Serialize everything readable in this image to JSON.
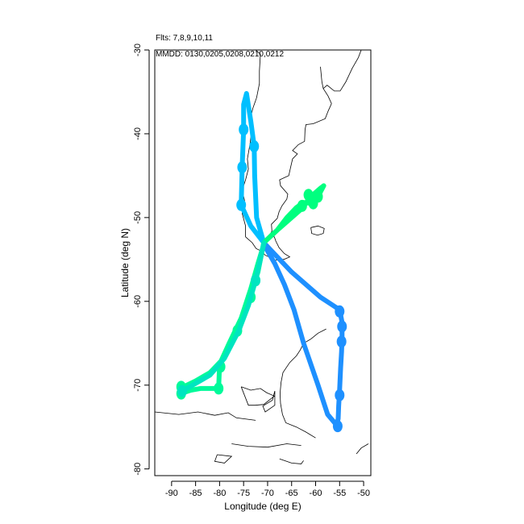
{
  "header": {
    "flights_label": "Flts: 7,8,9,10,11",
    "dates_label": "MMDD: 0130,0205,0208,0210,0212"
  },
  "chart_data": {
    "type": "map-trajectory",
    "xlabel": "Longitude (deg E)",
    "ylabel": "Latitude (deg N)",
    "xlim": [
      -93.5,
      -48.5
    ],
    "ylim": [
      -80.8,
      -30
    ],
    "xticks": [
      -90,
      -85,
      -80,
      -75,
      -70,
      -65,
      -60,
      -55,
      -50
    ],
    "yticks": [
      -80,
      -70,
      -60,
      -50,
      -40,
      -30
    ],
    "grid": false,
    "colors": {
      "coast": "#000000",
      "flight_7": "#1e90ff",
      "flight_8": "#00bfff",
      "flight_9": "#00ff7f",
      "flight_10": "#00fa9a",
      "flight_11": "#00e5c0"
    },
    "series": [
      {
        "flight": "7",
        "date": "0130",
        "color": "#1e90ff",
        "points": [
          [
            -70.8,
            -53.0
          ],
          [
            -65,
            -56.5
          ],
          [
            -59,
            -59.5
          ],
          [
            -55,
            -61
          ],
          [
            -54.5,
            -62.5
          ],
          [
            -54.5,
            -64.5
          ],
          [
            -54.6,
            -66
          ],
          [
            -54.8,
            -68
          ],
          [
            -55.0,
            -70.5
          ],
          [
            -55.2,
            -72.5
          ],
          [
            -55.3,
            -74.0
          ],
          [
            -55.6,
            -74.8
          ],
          [
            -57.5,
            -73.5
          ],
          [
            -59.5,
            -70
          ],
          [
            -62.5,
            -65
          ],
          [
            -64.5,
            -61
          ],
          [
            -66.5,
            -58
          ],
          [
            -68.5,
            -55.5
          ],
          [
            -70.8,
            -53.2
          ]
        ],
        "markers": [
          [
            -55,
            -61.2
          ],
          [
            -54.5,
            -63
          ],
          [
            -54.6,
            -64.8
          ],
          [
            -55,
            -71.2
          ],
          [
            -55.4,
            -74.9
          ]
        ]
      },
      {
        "flight": "8",
        "date": "0205",
        "color": "#00bfff",
        "points": [
          [
            -70.8,
            -53.0
          ],
          [
            -72.3,
            -50
          ],
          [
            -72.7,
            -45
          ],
          [
            -72.8,
            -41.5
          ],
          [
            -73.5,
            -38.5
          ],
          [
            -74.4,
            -35.2
          ],
          [
            -75.0,
            -36.5
          ],
          [
            -75.0,
            -39.5
          ],
          [
            -75.3,
            -44
          ],
          [
            -75.5,
            -48.5
          ],
          [
            -73.5,
            -51
          ],
          [
            -70.8,
            -53.0
          ]
        ],
        "markers": [
          [
            -72.8,
            -41.5
          ],
          [
            -75.0,
            -39.5
          ],
          [
            -75.3,
            -44
          ],
          [
            -75.5,
            -48.5
          ]
        ]
      },
      {
        "flight": "9",
        "date": "0208",
        "color": "#00ff7f",
        "points": [
          [
            -70.8,
            -53.0
          ],
          [
            -69,
            -52
          ],
          [
            -66,
            -50.5
          ],
          [
            -63,
            -49
          ],
          [
            -61,
            -47.5
          ],
          [
            -59,
            -46.5
          ],
          [
            -58.3,
            -46.2
          ],
          [
            -59.5,
            -47.5
          ],
          [
            -61,
            -48.3
          ],
          [
            -62.5,
            -48.2
          ],
          [
            -64,
            -48.8
          ],
          [
            -66,
            -50
          ],
          [
            -68,
            -51.5
          ],
          [
            -70.8,
            -53.0
          ]
        ],
        "markers": [
          [
            -59.5,
            -47.5
          ],
          [
            -61.5,
            -47.3
          ],
          [
            -62.8,
            -48.6
          ],
          [
            -60.5,
            -48.3
          ]
        ]
      },
      {
        "flight": "10",
        "date": "0210",
        "color": "#00fa9a",
        "points": [
          [
            -70.8,
            -53.0
          ],
          [
            -72,
            -56.5
          ],
          [
            -74,
            -60
          ],
          [
            -76,
            -63.5
          ],
          [
            -79.5,
            -67
          ],
          [
            -82,
            -68.5
          ],
          [
            -85,
            -69.5
          ],
          [
            -87.5,
            -70.2
          ],
          [
            -88,
            -71
          ],
          [
            -86,
            -70.6
          ],
          [
            -84,
            -70.4
          ],
          [
            -80.2,
            -70.4
          ],
          [
            -80,
            -67.5
          ],
          [
            -78,
            -65
          ],
          [
            -75.5,
            -62
          ],
          [
            -73.5,
            -58.5
          ],
          [
            -72,
            -55.5
          ],
          [
            -70.8,
            -53.2
          ]
        ],
        "markers": [
          [
            -88,
            -70.2
          ],
          [
            -88,
            -71
          ],
          [
            -80.2,
            -70.4
          ],
          [
            -79.8,
            -67.8
          ],
          [
            -76.3,
            -63.5
          ],
          [
            -73.5,
            -59.5
          ]
        ]
      },
      {
        "flight": "11",
        "date": "0212",
        "color": "#00e5c0",
        "points": [
          [
            -70.8,
            -53.0
          ],
          [
            -71.5,
            -55
          ],
          [
            -72.5,
            -57.5
          ],
          [
            -74,
            -60.5
          ],
          [
            -76,
            -63.5
          ],
          [
            -79,
            -66.8
          ],
          [
            -82,
            -68.8
          ],
          [
            -85,
            -69.8
          ],
          [
            -87.8,
            -70.7
          ]
        ],
        "markers": [
          [
            -72.5,
            -57.5
          ],
          [
            -87.8,
            -70.7
          ]
        ]
      }
    ],
    "coastlines": [
      [
        [
          -72.5,
          -30
        ],
        [
          -71.5,
          -30.5
        ],
        [
          -71.7,
          -32.5
        ],
        [
          -71.7,
          -34
        ],
        [
          -72.3,
          -35.7
        ],
        [
          -73.1,
          -37
        ],
        [
          -73.5,
          -38
        ],
        [
          -73.3,
          -39.5
        ],
        [
          -73.6,
          -41
        ],
        [
          -73.9,
          -42
        ],
        [
          -74.2,
          -43
        ],
        [
          -74.0,
          -44.2
        ],
        [
          -74.6,
          -45.5
        ],
        [
          -75.3,
          -46.7
        ],
        [
          -74.8,
          -48
        ],
        [
          -75.3,
          -49.5
        ],
        [
          -74.6,
          -51
        ],
        [
          -74.6,
          -52.3
        ],
        [
          -73.2,
          -53
        ],
        [
          -72.4,
          -53.7
        ],
        [
          -71.3,
          -54.0
        ],
        [
          -70.5,
          -54.5
        ],
        [
          -69.3,
          -54.8
        ],
        [
          -68.5,
          -55.1
        ],
        [
          -67.3,
          -55.0
        ],
        [
          -66.6,
          -55.0
        ],
        [
          -65.4,
          -54.7
        ],
        [
          -66.5,
          -54.3
        ],
        [
          -67.6,
          -53.6
        ],
        [
          -68.3,
          -52.8
        ],
        [
          -68.6,
          -52.3
        ],
        [
          -69.6,
          -52.2
        ],
        [
          -69.1,
          -51.6
        ],
        [
          -69.2,
          -50.8
        ],
        [
          -68.0,
          -50.1
        ],
        [
          -67.6,
          -49.3
        ],
        [
          -67.0,
          -48.6
        ],
        [
          -66.0,
          -47.8
        ],
        [
          -65.8,
          -47.2
        ],
        [
          -67.3,
          -46.2
        ],
        [
          -67.5,
          -45.5
        ],
        [
          -65.6,
          -45.0
        ],
        [
          -65.2,
          -44.0
        ],
        [
          -64.8,
          -43.0
        ],
        [
          -63.8,
          -42.4
        ],
        [
          -64.8,
          -42.0
        ],
        [
          -63.6,
          -41.3
        ],
        [
          -62.3,
          -40.9
        ],
        [
          -62.2,
          -39.5
        ],
        [
          -62.0,
          -38.9
        ],
        [
          -60.5,
          -38.8
        ],
        [
          -58.0,
          -38.2
        ],
        [
          -57.4,
          -37.3
        ],
        [
          -56.7,
          -36.4
        ],
        [
          -57.4,
          -35.5
        ],
        [
          -58.4,
          -34.6
        ],
        [
          -57.6,
          -34.2
        ],
        [
          -56.1,
          -34.9
        ],
        [
          -54.9,
          -34.9
        ],
        [
          -53.7,
          -33.8
        ],
        [
          -52.4,
          -32.2
        ],
        [
          -51.1,
          -30.9
        ],
        [
          -50.5,
          -30
        ]
      ],
      [
        [
          -61.0,
          -51.2
        ],
        [
          -59.5,
          -51.0
        ],
        [
          -58.2,
          -51.3
        ],
        [
          -58.4,
          -51.9
        ],
        [
          -59.6,
          -52.1
        ],
        [
          -60.8,
          -51.9
        ],
        [
          -61.0,
          -51.2
        ]
      ],
      [
        [
          -57.8,
          -63.3
        ],
        [
          -59.5,
          -63.8
        ],
        [
          -61.0,
          -64.5
        ],
        [
          -62.5,
          -65.0
        ],
        [
          -63.2,
          -65.8
        ],
        [
          -64.0,
          -66.5
        ],
        [
          -65.4,
          -67.3
        ],
        [
          -66.8,
          -68.5
        ],
        [
          -67.2,
          -69.7
        ],
        [
          -67.4,
          -71.0
        ],
        [
          -67.3,
          -72.2
        ],
        [
          -66.9,
          -73.5
        ],
        [
          -66.2,
          -74.5
        ],
        [
          -64.0,
          -75.0
        ],
        [
          -62.0,
          -75.6
        ],
        [
          -60.0,
          -76.3
        ]
      ],
      [
        [
          -75.5,
          -70.2
        ],
        [
          -73.5,
          -70.6
        ],
        [
          -71.5,
          -70.4
        ],
        [
          -70.2,
          -70.9
        ],
        [
          -68.6,
          -71.3
        ],
        [
          -70.8,
          -72.3
        ],
        [
          -72.6,
          -72.4
        ],
        [
          -74.0,
          -72.4
        ],
        [
          -75.5,
          -70.2
        ]
      ],
      [
        [
          -68.5,
          -70.7
        ],
        [
          -69.0,
          -71.8
        ],
        [
          -71.0,
          -72.5
        ],
        [
          -70.5,
          -73.2
        ],
        [
          -68.5,
          -72.4
        ],
        [
          -68.5,
          -70.7
        ]
      ],
      [
        [
          -93.5,
          -73.2
        ],
        [
          -88.5,
          -73.5
        ],
        [
          -84.5,
          -73.2
        ],
        [
          -81.0,
          -73.6
        ],
        [
          -78.2,
          -73.3
        ],
        [
          -76.5,
          -73.9
        ],
        [
          -72.5,
          -74.2
        ]
      ],
      [
        [
          -77.5,
          -77.0
        ],
        [
          -74.0,
          -77.3
        ],
        [
          -70.0,
          -77.4
        ],
        [
          -66.0,
          -77.0
        ],
        [
          -63.0,
          -77.2
        ]
      ],
      [
        [
          -80.5,
          -78.3
        ],
        [
          -77.5,
          -78.5
        ],
        [
          -79.0,
          -79.3
        ],
        [
          -81.0,
          -79.1
        ],
        [
          -80.5,
          -78.3
        ]
      ],
      [
        [
          -67.5,
          -78.8
        ],
        [
          -65.0,
          -79.3
        ],
        [
          -63.0,
          -79.4
        ],
        [
          -62.5,
          -79.0
        ]
      ],
      [
        [
          -51.5,
          -78.2
        ],
        [
          -50.5,
          -77.5
        ],
        [
          -49.0,
          -77.0
        ]
      ],
      [
        [
          -59.0,
          -32.0
        ],
        [
          -58.7,
          -33.8
        ],
        [
          -58.4,
          -34.6
        ]
      ]
    ]
  }
}
